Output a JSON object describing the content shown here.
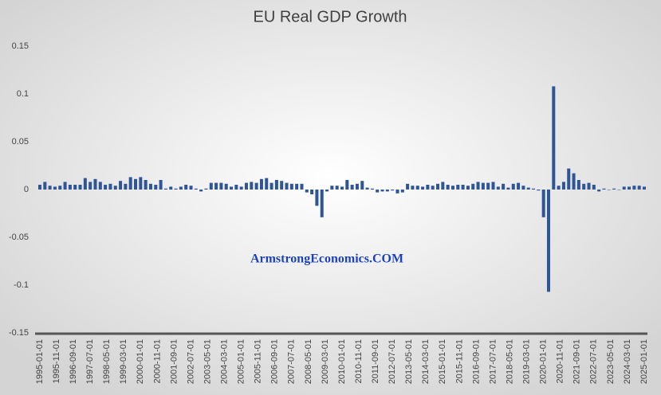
{
  "chart_data": {
    "type": "bar",
    "title": "EU Real GDP Growth",
    "watermark": "ArmstrongEconomics.COM",
    "color": "#2f5597",
    "x": [
      "1995-01-01",
      "1995-04-01",
      "1995-07-01",
      "1995-10-01",
      "1996-01-01",
      "1996-04-01",
      "1996-07-01",
      "1996-10-01",
      "1997-01-01",
      "1997-04-01",
      "1997-07-01",
      "1997-10-01",
      "1998-01-01",
      "1998-04-01",
      "1998-07-01",
      "1998-10-01",
      "1999-01-01",
      "1999-04-01",
      "1999-07-01",
      "1999-10-01",
      "2000-01-01",
      "2000-04-01",
      "2000-07-01",
      "2000-10-01",
      "2001-01-01",
      "2001-04-01",
      "2001-07-01",
      "2001-10-01",
      "2002-01-01",
      "2002-04-01",
      "2002-07-01",
      "2002-10-01",
      "2003-01-01",
      "2003-04-01",
      "2003-07-01",
      "2003-10-01",
      "2004-01-01",
      "2004-04-01",
      "2004-07-01",
      "2004-10-01",
      "2005-01-01",
      "2005-04-01",
      "2005-07-01",
      "2005-10-01",
      "2006-01-01",
      "2006-04-01",
      "2006-07-01",
      "2006-10-01",
      "2007-01-01",
      "2007-04-01",
      "2007-07-01",
      "2007-10-01",
      "2008-01-01",
      "2008-04-01",
      "2008-07-01",
      "2008-10-01",
      "2009-01-01",
      "2009-04-01",
      "2009-07-01",
      "2009-10-01",
      "2010-01-01",
      "2010-04-01",
      "2010-07-01",
      "2010-10-01",
      "2011-01-01",
      "2011-04-01",
      "2011-07-01",
      "2011-10-01",
      "2012-01-01",
      "2012-04-01",
      "2012-07-01",
      "2012-10-01",
      "2013-01-01",
      "2013-04-01",
      "2013-07-01",
      "2013-10-01",
      "2014-01-01",
      "2014-04-01",
      "2014-07-01",
      "2014-10-01",
      "2015-01-01",
      "2015-04-01",
      "2015-07-01",
      "2015-10-01",
      "2016-01-01",
      "2016-04-01",
      "2016-07-01",
      "2016-10-01",
      "2017-01-01",
      "2017-04-01",
      "2017-07-01",
      "2017-10-01",
      "2018-01-01",
      "2018-04-01",
      "2018-07-01",
      "2018-10-01",
      "2019-01-01",
      "2019-04-01",
      "2019-07-01",
      "2019-10-01",
      "2020-01-01",
      "2020-04-01",
      "2020-07-01",
      "2020-10-01",
      "2021-01-01",
      "2021-04-01",
      "2021-07-01",
      "2021-10-01",
      "2022-01-01",
      "2022-04-01",
      "2022-07-01",
      "2022-10-01",
      "2023-01-01",
      "2023-04-01",
      "2023-07-01",
      "2023-10-01",
      "2024-01-01",
      "2024-04-01",
      "2024-07-01",
      "2024-10-01",
      "2025-01-01"
    ],
    "values": [
      0.005,
      0.008,
      0.004,
      0.003,
      0.004,
      0.008,
      0.005,
      0.005,
      0.005,
      0.012,
      0.008,
      0.011,
      0.008,
      0.005,
      0.006,
      0.004,
      0.009,
      0.006,
      0.013,
      0.011,
      0.013,
      0.01,
      0.006,
      0.005,
      0.01,
      0.001,
      0.003,
      0.001,
      0.003,
      0.005,
      0.004,
      0.001,
      -0.002,
      0.001,
      0.007,
      0.007,
      0.007,
      0.006,
      0.003,
      0.005,
      0.003,
      0.007,
      0.008,
      0.007,
      0.011,
      0.012,
      0.007,
      0.01,
      0.009,
      0.007,
      0.006,
      0.006,
      0.006,
      -0.003,
      -0.005,
      -0.017,
      -0.029,
      -0.002,
      0.004,
      0.004,
      0.003,
      0.01,
      0.005,
      0.006,
      0.009,
      0.002,
      0.001,
      -0.003,
      -0.002,
      -0.002,
      -0.001,
      -0.004,
      -0.003,
      0.006,
      0.004,
      0.004,
      0.003,
      0.005,
      0.004,
      0.006,
      0.008,
      0.005,
      0.004,
      0.005,
      0.005,
      0.004,
      0.006,
      0.008,
      0.007,
      0.007,
      0.008,
      0.003,
      0.006,
      0.002,
      0.006,
      0.007,
      0.004,
      0.002,
      0.001,
      -0.001,
      -0.029,
      -0.107,
      0.108,
      0.004,
      0.008,
      0.022,
      0.017,
      0.01,
      0.006,
      0.007,
      0.005,
      -0.002,
      0.001,
      0.0,
      0.001,
      0.0,
      0.003,
      0.003,
      0.004,
      0.004,
      0.003
    ],
    "xlim": [
      "1995-01-01",
      "2025-01-01"
    ],
    "xticks": [
      "1995-01-01",
      "1995-11-01",
      "1996-09-01",
      "1997-07-01",
      "1998-05-01",
      "1999-03-01",
      "2000-01-01",
      "2000-11-01",
      "2001-09-01",
      "2002-07-01",
      "2003-05-01",
      "2004-03-01",
      "2005-01-01",
      "2005-11-01",
      "2006-09-01",
      "2007-07-01",
      "2008-05-01",
      "2009-03-01",
      "2010-01-01",
      "2010-11-01",
      "2011-09-01",
      "2012-07-01",
      "2013-05-01",
      "2014-03-01",
      "2015-01-01",
      "2015-11-01",
      "2016-09-01",
      "2017-07-01",
      "2018-05-01",
      "2019-03-01",
      "2020-01-01",
      "2020-11-01",
      "2021-09-01",
      "2022-07-01",
      "2023-05-01",
      "2024-03-01",
      "2025-01-01"
    ],
    "ylim": [
      -0.15,
      0.15
    ],
    "yticks": [
      0.15,
      0.1,
      0.05,
      0,
      -0.05,
      -0.1,
      -0.15
    ],
    "grid": false
  }
}
